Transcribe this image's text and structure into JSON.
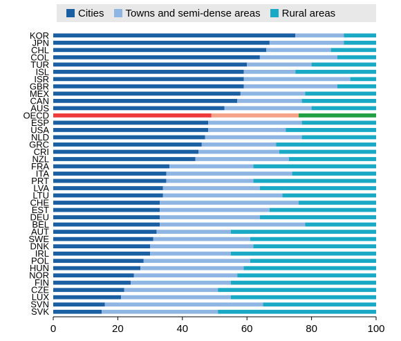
{
  "chart_data": {
    "type": "bar",
    "orientation": "horizontal",
    "stacked": true,
    "categories": [
      "KOR",
      "JPN",
      "CHL",
      "COL",
      "TUR",
      "ISL",
      "ISR",
      "GBR",
      "MEX",
      "CAN",
      "AUS",
      "OECD",
      "ESP",
      "USA",
      "NLD",
      "GRC",
      "CRI",
      "NZL",
      "FRA",
      "ITA",
      "PRT",
      "LVA",
      "LTU",
      "CHE",
      "EST",
      "DEU",
      "BEL",
      "AUT",
      "SWE",
      "DNK",
      "IRL",
      "POL",
      "HUN",
      "NOR",
      "FIN",
      "CZE",
      "LUX",
      "SVN",
      "SVK"
    ],
    "series": [
      {
        "name": "Cities",
        "color": "#1b5fa3",
        "values": [
          75,
          67,
          66,
          64,
          60,
          59,
          59,
          59,
          58,
          57,
          53,
          49,
          48,
          48,
          47,
          46,
          45,
          44,
          36,
          35,
          35,
          34,
          34,
          33,
          33,
          33,
          33,
          32,
          31,
          30,
          30,
          28,
          27,
          25,
          24,
          22,
          21,
          16,
          15
        ]
      },
      {
        "name": "Towns and semi-dense areas",
        "color": "#8fb5e2",
        "values": [
          15,
          23,
          20,
          24,
          20,
          16,
          33,
          29,
          20,
          20,
          27,
          27,
          29,
          24,
          30,
          23,
          25,
          29,
          26,
          39,
          27,
          30,
          37,
          43,
          34,
          31,
          45,
          23,
          30,
          32,
          25,
          33,
          32,
          32,
          31,
          29,
          34,
          49,
          36
        ]
      },
      {
        "name": "Rural areas",
        "color": "#1aa9c4",
        "values": [
          10,
          10,
          14,
          12,
          20,
          25,
          8,
          12,
          22,
          23,
          20,
          24,
          23,
          28,
          23,
          31,
          30,
          27,
          38,
          26,
          38,
          36,
          29,
          24,
          33,
          36,
          22,
          45,
          39,
          38,
          45,
          39,
          41,
          43,
          45,
          49,
          45,
          35,
          49
        ]
      }
    ],
    "highlight": {
      "category": "OECD",
      "colors": [
        "#ef3b3b",
        "#f5a28a",
        "#22a045"
      ]
    },
    "xlim": [
      0,
      100
    ],
    "xticks": [
      0,
      20,
      40,
      60,
      80,
      100
    ],
    "xlabel": "",
    "ylabel": "",
    "grid": false,
    "legend_position": "top"
  }
}
